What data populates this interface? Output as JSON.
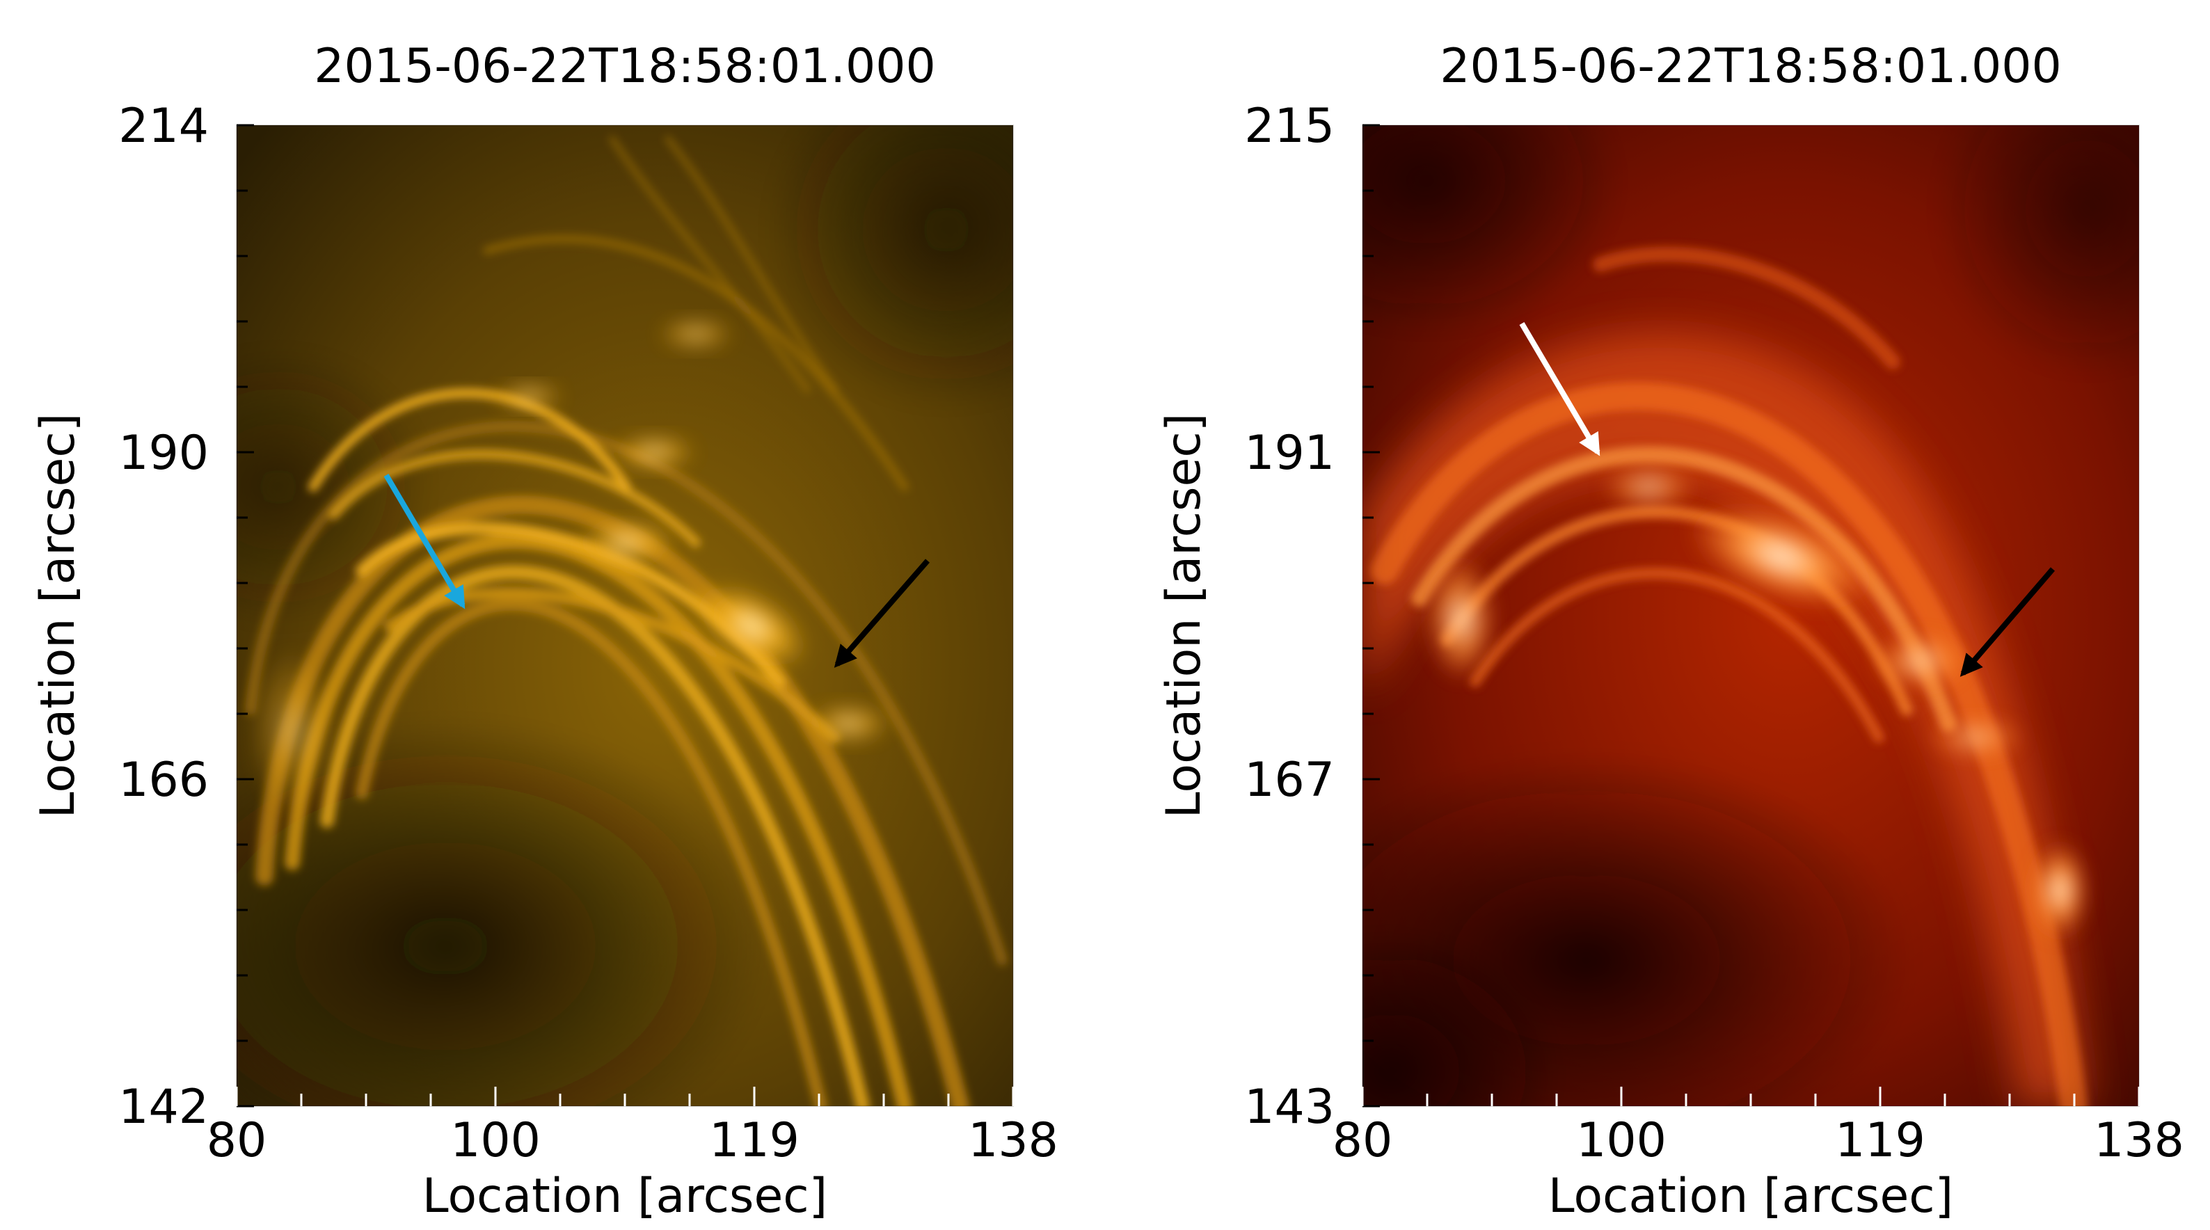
{
  "panels": [
    {
      "id": "aia171",
      "title": "2015-06-22T18:58:01.000",
      "xlabel": "Location [arcsec]",
      "ylabel": "Location [arcsec]",
      "x_ticks": [
        "80",
        "100",
        "119",
        "138"
      ],
      "y_ticks": [
        "214",
        "190",
        "166",
        "142"
      ],
      "colormap": "gold",
      "colors": {
        "dark": "#1c1402",
        "mid": "#8a6406",
        "bright": "#f5b21c",
        "peak": "#fff3c8"
      },
      "arrows": [
        {
          "name": "cyan-arrow",
          "color": "#1aa7dd"
        },
        {
          "name": "black-arrow",
          "color": "#000000"
        }
      ]
    },
    {
      "id": "aia304",
      "title": "2015-06-22T18:58:01.000",
      "xlabel": "Location [arcsec]",
      "ylabel": "Location [arcsec]",
      "x_ticks": [
        "80",
        "100",
        "119",
        "138"
      ],
      "y_ticks": [
        "215",
        "191",
        "167",
        "143"
      ],
      "colormap": "red-hot",
      "colors": {
        "dark": "#1a0200",
        "mid": "#8a1800",
        "bright": "#ff7a1e",
        "peak": "#fff0dc"
      },
      "arrows": [
        {
          "name": "white-arrow",
          "color": "#ffffff"
        },
        {
          "name": "black-arrow",
          "color": "#000000"
        }
      ]
    }
  ]
}
